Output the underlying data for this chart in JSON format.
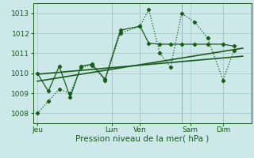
{
  "xlabel": "Pression niveau de la mer( hPa )",
  "bg_color": "#cce8e8",
  "grid_color": "#a8cccc",
  "line_color": "#1a5c1a",
  "text_color": "#1a5c1a",
  "vline_color": "#b08080",
  "ylim": [
    1007.5,
    1013.5
  ],
  "xlim": [
    0,
    100
  ],
  "xtick_positions": [
    2,
    36,
    49,
    72,
    87
  ],
  "xtick_labels": [
    "Jeu",
    "Lun",
    "Ven",
    "Sam",
    "Dim"
  ],
  "ytick_positions": [
    1008,
    1009,
    1010,
    1011,
    1012,
    1013
  ],
  "ytick_labels": [
    "1008",
    "1009",
    "1010",
    "1011",
    "1012",
    "1013"
  ],
  "series1_x": [
    2,
    7,
    12,
    17,
    22,
    27,
    33,
    40,
    49,
    53,
    58,
    63,
    68,
    74,
    80,
    87,
    92
  ],
  "series1_y": [
    1008.0,
    1008.6,
    1009.2,
    1009.0,
    1010.3,
    1010.4,
    1009.65,
    1012.0,
    1012.35,
    1013.2,
    1011.0,
    1010.3,
    1013.0,
    1012.55,
    1011.75,
    1009.65,
    1011.15
  ],
  "series2_x": [
    2,
    7,
    12,
    17,
    22,
    27,
    33,
    40,
    49,
    53,
    58,
    63,
    68,
    74,
    80,
    87,
    92
  ],
  "series2_y": [
    1010.0,
    1009.1,
    1010.35,
    1008.8,
    1010.35,
    1010.45,
    1009.7,
    1012.15,
    1012.35,
    1011.5,
    1011.45,
    1011.45,
    1011.45,
    1011.45,
    1011.45,
    1011.45,
    1011.35
  ],
  "trend1_x": [
    2,
    96
  ],
  "trend1_y": [
    1009.6,
    1011.25
  ],
  "trend2_x": [
    2,
    96
  ],
  "trend2_y": [
    1009.95,
    1010.85
  ],
  "vline_positions": [
    36,
    49,
    68,
    87
  ]
}
